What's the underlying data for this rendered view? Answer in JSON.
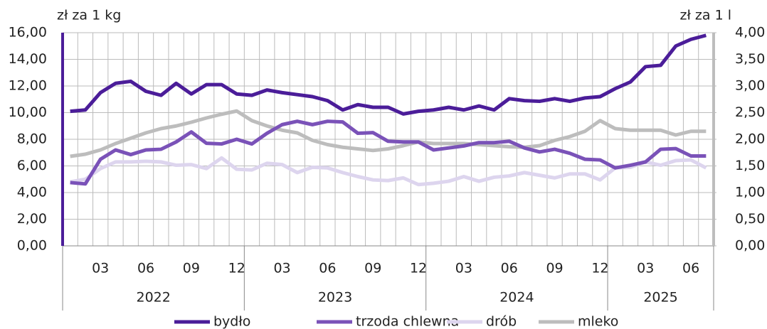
{
  "chart_data": {
    "type": "line",
    "y_label": "zł za 1 kg",
    "y2_label": "zł za 1 l",
    "categories": [
      null,
      null,
      "03",
      null,
      null,
      "06",
      null,
      null,
      "09",
      null,
      null,
      "12",
      null,
      null,
      "03",
      null,
      null,
      "06",
      null,
      null,
      "09",
      null,
      null,
      "12",
      null,
      null,
      "03",
      null,
      null,
      "06",
      null,
      null,
      "09",
      null,
      null,
      "12",
      null,
      null,
      "03",
      null,
      null,
      "06",
      null
    ],
    "years": [
      "2022",
      "2023",
      "2024",
      "2025"
    ],
    "series": [
      {
        "name": "bydło",
        "color": "#4b1d99",
        "values": [
          10.1,
          10.2,
          11.5,
          12.2,
          12.35,
          11.6,
          11.3,
          12.2,
          11.4,
          12.1,
          12.1,
          11.4,
          11.3,
          11.7,
          11.5,
          11.35,
          11.2,
          10.9,
          10.2,
          10.6,
          10.4,
          10.4,
          9.9,
          10.1,
          10.2,
          10.4,
          10.2,
          10.5,
          10.2,
          11.05,
          10.9,
          10.85,
          11.05,
          10.85,
          11.1,
          11.2,
          11.8,
          12.3,
          13.45,
          13.55,
          15.0,
          15.5,
          15.8
        ]
      },
      {
        "name": "trzoda chlewna",
        "color": "#7a52b8",
        "values": [
          4.75,
          4.65,
          6.5,
          7.2,
          6.85,
          7.2,
          7.25,
          7.8,
          8.55,
          7.7,
          7.65,
          8.0,
          7.65,
          8.45,
          9.1,
          9.35,
          9.1,
          9.35,
          9.3,
          8.45,
          8.5,
          7.85,
          7.8,
          7.8,
          7.2,
          7.35,
          7.5,
          7.75,
          7.75,
          7.85,
          7.35,
          7.05,
          7.25,
          6.95,
          6.5,
          6.45,
          5.85,
          6.05,
          6.3,
          7.25,
          7.3,
          6.75,
          6.75
        ]
      },
      {
        "name": "drób",
        "color": "#ddd5ee",
        "values": [
          4.8,
          5.0,
          5.8,
          6.3,
          6.3,
          6.35,
          6.3,
          6.05,
          6.1,
          5.8,
          6.6,
          5.75,
          5.7,
          6.2,
          6.1,
          5.5,
          5.9,
          5.85,
          5.5,
          5.2,
          4.95,
          4.9,
          5.1,
          4.6,
          4.7,
          4.85,
          5.2,
          4.85,
          5.15,
          5.25,
          5.5,
          5.3,
          5.1,
          5.4,
          5.4,
          4.95,
          5.85,
          5.9,
          6.3,
          6.05,
          6.4,
          6.45,
          5.85
        ]
      },
      {
        "name": "mleko",
        "color": "#bdbdbd",
        "axis": "y2",
        "values": [
          1.68,
          1.72,
          1.8,
          1.92,
          2.02,
          2.12,
          2.2,
          2.25,
          2.32,
          2.4,
          2.47,
          2.53,
          2.35,
          2.25,
          2.17,
          2.12,
          1.98,
          1.9,
          1.85,
          1.82,
          1.79,
          1.82,
          1.88,
          1.95,
          1.92,
          1.92,
          1.92,
          1.9,
          1.88,
          1.86,
          1.85,
          1.88,
          1.98,
          2.05,
          2.15,
          2.35,
          2.2,
          2.17,
          2.17,
          2.17,
          2.08,
          2.15,
          2.15
        ]
      }
    ],
    "ylim": [
      0,
      16
    ],
    "yticks": [
      {
        "value": 0,
        "label": "0,00"
      },
      {
        "value": 2,
        "label": "2,00"
      },
      {
        "value": 4,
        "label": "4,00"
      },
      {
        "value": 6,
        "label": "6,00"
      },
      {
        "value": 8,
        "label": "8,00"
      },
      {
        "value": 10,
        "label": "10,00"
      },
      {
        "value": 12,
        "label": "12,00"
      },
      {
        "value": 14,
        "label": "14,00"
      },
      {
        "value": 16,
        "label": "16,00"
      }
    ],
    "y2lim": [
      0,
      4
    ],
    "y2ticks": [
      {
        "value": 0,
        "label": "0,00"
      },
      {
        "value": 0.5,
        "label": "0,50"
      },
      {
        "value": 1,
        "label": "1,00"
      },
      {
        "value": 1.5,
        "label": "1,50"
      },
      {
        "value": 2,
        "label": "2,00"
      },
      {
        "value": 2.5,
        "label": "2,50"
      },
      {
        "value": 3,
        "label": "3,00"
      },
      {
        "value": 3.5,
        "label": "3,50"
      },
      {
        "value": 4,
        "label": "4,00"
      }
    ],
    "grid": true,
    "legend": "bottom"
  }
}
